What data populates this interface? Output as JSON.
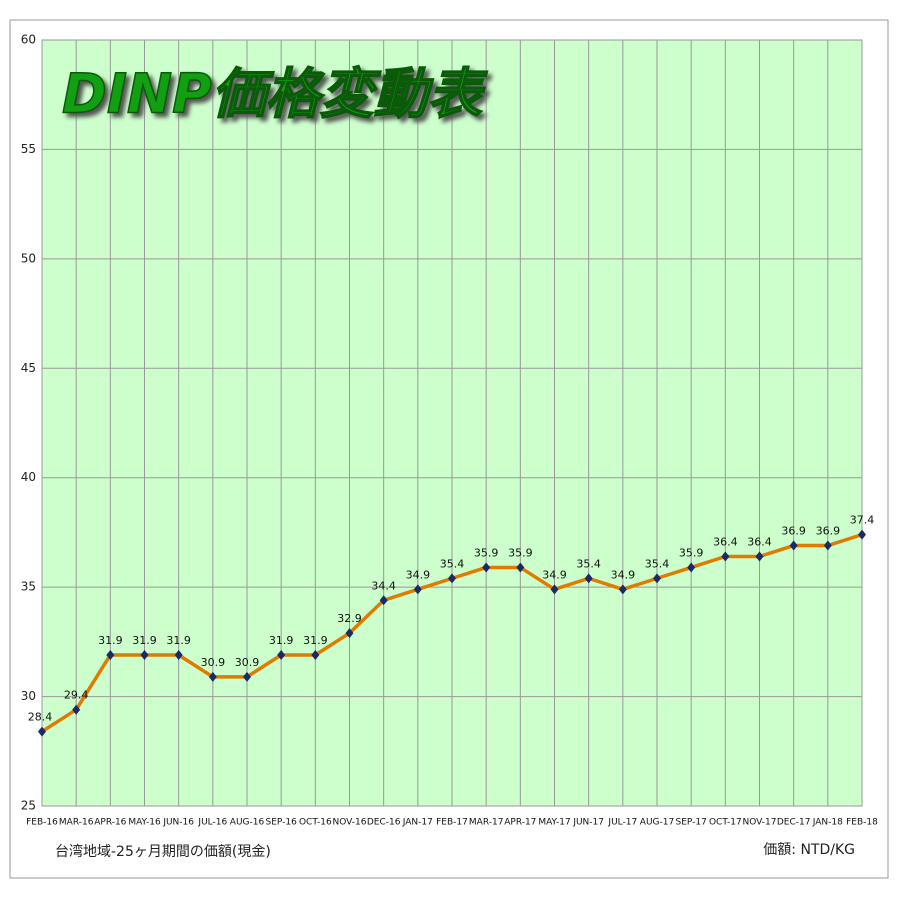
{
  "chart_data": {
    "type": "line",
    "title": "DINP価格変動表",
    "annotations": [
      "台湾地域-25ヶ月期間の価額(現金)",
      "価額: NTD/KG"
    ],
    "categories": [
      "FEB-16",
      "MAR-16",
      "APR-16",
      "MAY-16",
      "JUN-16",
      "JUL-16",
      "AUG-16",
      "SEP-16",
      "OCT-16",
      "NOV-16",
      "DEC-16",
      "JAN-17",
      "FEB-17",
      "MAR-17",
      "APR-17",
      "MAY-17",
      "JUN-17",
      "JUL-17",
      "AUG-17",
      "SEP-17",
      "OCT-17",
      "NOV-17",
      "DEC-17",
      "JAN-18",
      "FEB-18"
    ],
    "values": [
      28.4,
      29.4,
      31.9,
      31.9,
      31.9,
      30.9,
      30.9,
      31.9,
      31.9,
      32.9,
      34.4,
      34.9,
      35.4,
      35.9,
      35.9,
      34.9,
      35.4,
      34.9,
      35.4,
      35.9,
      36.4,
      36.4,
      36.9,
      36.9,
      37.4
    ],
    "color": "#e07b00",
    "marker_color": "#1a2a66",
    "ylim": [
      25,
      60
    ],
    "yticks": [
      25,
      30,
      35,
      40,
      45,
      50,
      55,
      60
    ],
    "grid": true
  }
}
